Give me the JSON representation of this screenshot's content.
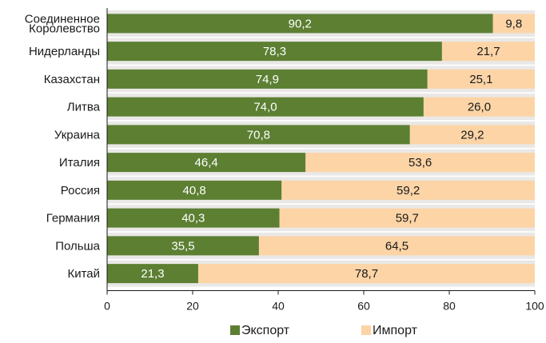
{
  "chart_data": {
    "type": "bar",
    "orientation": "horizontal",
    "stacked": true,
    "title": "",
    "xlabel": "",
    "ylabel": "",
    "xlim": [
      0,
      100
    ],
    "xticks": [
      0,
      20,
      40,
      60,
      80,
      100
    ],
    "grid": false,
    "band_shading": true,
    "legend_position": "bottom",
    "categories": [
      [
        "Соединенное",
        "Королевство"
      ],
      [
        "Нидерланды"
      ],
      [
        "Казахстан"
      ],
      [
        "Литва"
      ],
      [
        "Украина"
      ],
      [
        "Италия"
      ],
      [
        "Россия"
      ],
      [
        "Германия"
      ],
      [
        "Польша"
      ],
      [
        "Китай"
      ]
    ],
    "series": [
      {
        "name": "Экспорт",
        "color": "#5c7f32",
        "label_color": "#ffffff",
        "values": [
          90.2,
          78.3,
          74.9,
          74.0,
          70.8,
          46.4,
          40.8,
          40.3,
          35.5,
          21.3
        ],
        "labels": [
          "90,2",
          "78,3",
          "74,9",
          "74,0",
          "70,8",
          "46,4",
          "40,8",
          "40,3",
          "35,5",
          "21,3"
        ]
      },
      {
        "name": "Импорт",
        "color": "#fcd4a6",
        "label_color": "#1a1a1a",
        "values": [
          9.8,
          21.7,
          25.1,
          26.0,
          29.2,
          53.6,
          59.2,
          59.7,
          64.5,
          78.7
        ],
        "labels": [
          "9,8",
          "21,7",
          "25,1",
          "26,0",
          "29,2",
          "53,6",
          "59,2",
          "59,7",
          "64,5",
          "78,7"
        ]
      }
    ],
    "band_color": "#e9e8e6"
  }
}
